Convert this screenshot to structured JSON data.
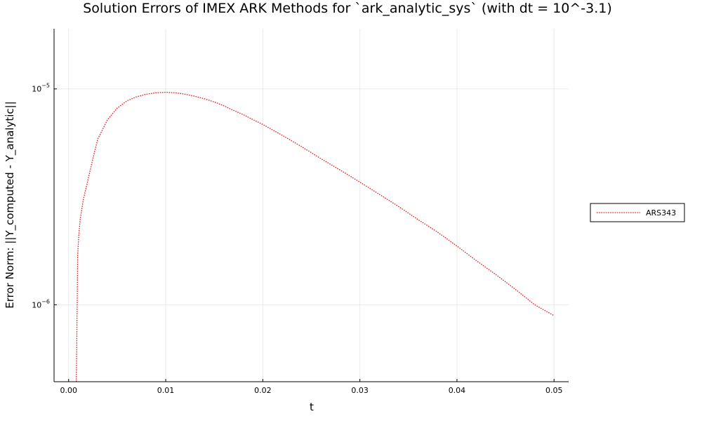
{
  "chart_data": {
    "type": "line",
    "title": "Solution Errors of IMEX ARK Methods for `ark_analytic_sys` (with dt = 10^-3.1)",
    "xlabel": "t",
    "ylabel": "Error Norm: ||Y_computed - Y_analytic||",
    "xlim": [
      -0.0015,
      0.0515
    ],
    "ylim": [
      4.4e-07,
      1.9e-05
    ],
    "yscale": "log",
    "grid": true,
    "legend_position": "outside-right",
    "x_ticks": [
      0.0,
      0.01,
      0.02,
      0.03,
      0.04,
      0.05
    ],
    "x_tick_labels": [
      "0.00",
      "0.01",
      "0.02",
      "0.03",
      "0.04",
      "0.05"
    ],
    "y_ticks": [
      1e-06,
      1e-05
    ],
    "y_tick_labels": [
      {
        "base": "10",
        "exp": "−6"
      },
      {
        "base": "10",
        "exp": "−5"
      }
    ],
    "series": [
      {
        "name": "ARS343",
        "color": "#e31a1c",
        "style": "dotted",
        "x": [
          0.00079,
          0.00094,
          0.00104,
          0.0012,
          0.0015,
          0.002,
          0.0025,
          0.003,
          0.004,
          0.005,
          0.006,
          0.007,
          0.008,
          0.009,
          0.01,
          0.011,
          0.012,
          0.013,
          0.014,
          0.015,
          0.016,
          0.017,
          0.018,
          0.019,
          0.02,
          0.022,
          0.024,
          0.026,
          0.028,
          0.03,
          0.032,
          0.034,
          0.036,
          0.038,
          0.04,
          0.042,
          0.044,
          0.046,
          0.048,
          0.05
        ],
        "y": [
          4.4e-07,
          1.7e-06,
          2.07e-06,
          2.5e-06,
          3.05e-06,
          3.8e-06,
          4.75e-06,
          5.85e-06,
          7.2e-06,
          8.15e-06,
          8.8e-06,
          9.2e-06,
          9.45e-06,
          9.6e-06,
          9.65e-06,
          9.6e-06,
          9.45e-06,
          9.25e-06,
          9e-06,
          8.7e-06,
          8.35e-06,
          7.95e-06,
          7.6e-06,
          7.2e-06,
          6.85e-06,
          6.1e-06,
          5.4e-06,
          4.75e-06,
          4.2e-06,
          3.7e-06,
          3.25e-06,
          2.85e-06,
          2.48e-06,
          2.17e-06,
          1.87e-06,
          1.6e-06,
          1.38e-06,
          1.18e-06,
          1e-06,
          8.9e-07
        ]
      }
    ]
  }
}
